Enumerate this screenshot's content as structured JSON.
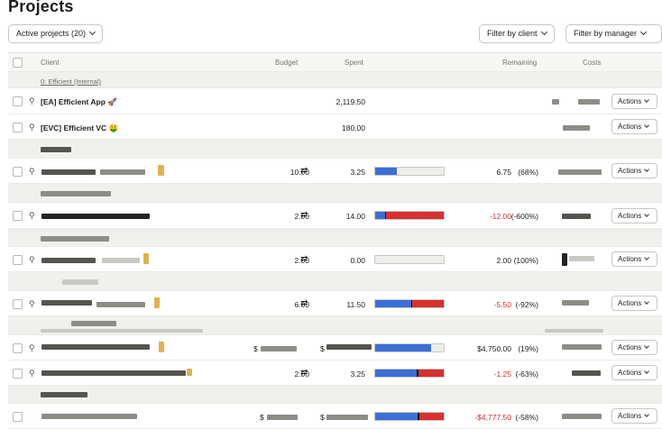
{
  "page": {
    "title": "Projects"
  },
  "filters": {
    "active": "Active projects (20)",
    "client": "Filter by client",
    "manager": "Filter by manager"
  },
  "columns": {
    "client": "Client",
    "budget": "Budget",
    "spent": "Spent",
    "remaining": "Remaining",
    "costs": "Costs"
  },
  "group_internal": "0: Efficient (Internal)",
  "actions_label": "Actions",
  "rows": [
    {
      "name": "[EA] Efficient App 🚀",
      "spent": "2,119.50"
    },
    {
      "name": "[EVC] Efficient VC 🤑",
      "spent": "180.00"
    },
    {
      "budget": "10.00",
      "spent": "3.25",
      "remaining": "6.75",
      "pct": "(68%)",
      "progress": 0.32,
      "over": false
    },
    {
      "budget": "2.00",
      "spent": "14.00",
      "remaining": "-12.00",
      "pct": "(-600%)",
      "progress": 1.0,
      "over": true
    },
    {
      "budget": "2.00",
      "spent": "0.00",
      "remaining": "2.00",
      "pct": "(100%)",
      "progress": 0.0,
      "over": false
    },
    {
      "budget": "6.00",
      "spent": "11.50",
      "remaining": "-5.50",
      "pct": "(-92%)",
      "progress": 1.0,
      "over": true
    },
    {
      "budget": "$",
      "spent": "$",
      "remaining": "$4,750.00",
      "pct": "(19%)",
      "progress": 0.81,
      "over": false
    },
    {
      "budget": "2.00",
      "spent": "3.25",
      "remaining": "-1.25",
      "pct": "(-63%)",
      "progress": 1.0,
      "over": true
    },
    {
      "budget": "$",
      "spent": "$",
      "remaining": "-$4,777.50",
      "pct": "(-58%)",
      "progress": 1.0,
      "over": true
    }
  ],
  "icons": {
    "pin": "pin-icon",
    "repeat": "repeat-icon",
    "chevron": "chevron-down-icon"
  },
  "colors": {
    "progress": "#3b6fd6",
    "over_budget": "#d63030",
    "negative_text": "#d12d2d"
  }
}
